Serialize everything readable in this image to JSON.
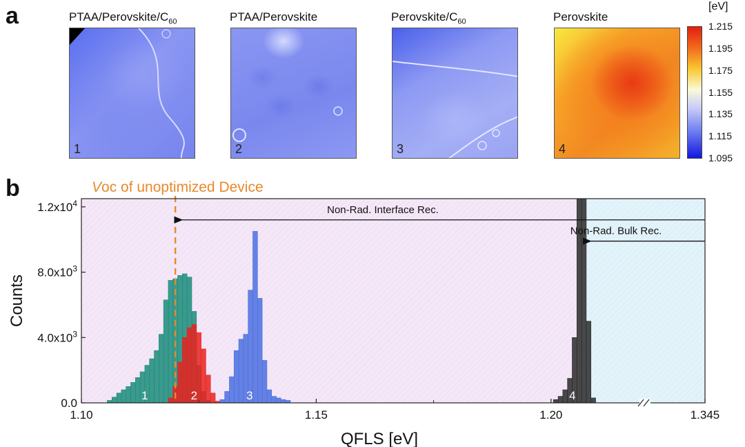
{
  "panel_a": {
    "letter": "a",
    "maps": [
      {
        "title_main": "PTAA/Perovskite/C",
        "title_sub": "60",
        "number": "1"
      },
      {
        "title_main": "PTAA/Perovskite",
        "title_sub": "",
        "number": "2"
      },
      {
        "title_main": "Perovskite/C",
        "title_sub": "60",
        "number": "3"
      },
      {
        "title_main": "Perovskite",
        "title_sub": "",
        "number": "4"
      }
    ],
    "colorbar": {
      "unit": "[eV]",
      "ticks": [
        "1.215",
        "1.195",
        "1.175",
        "1.155",
        "1.135",
        "1.115",
        "1.095"
      ]
    }
  },
  "panel_b": {
    "letter": "b",
    "voc_label_italic": "V",
    "voc_label_rest": "oc of unoptimized Device"
  },
  "chart_data": {
    "type": "bar",
    "xlabel": "QFLS [eV]",
    "ylabel": "Counts",
    "xlim": [
      1.1,
      1.345
    ],
    "axis_break_after": 1.22,
    "ylim": [
      0,
      12500
    ],
    "x_ticks": [
      "1.10",
      "1.15",
      "1.20",
      "1.345"
    ],
    "y_ticks": [
      {
        "value": 0,
        "label": "0.0"
      },
      {
        "value": 4000,
        "label": "4.0x10",
        "exp": "3"
      },
      {
        "value": 8000,
        "label": "8.0x10",
        "exp": "3"
      },
      {
        "value": 12000,
        "label": "1.2x10",
        "exp": "4"
      }
    ],
    "voc_line_x": 1.12,
    "shaded_regions": [
      {
        "name": "Non-Rad. Interface Rec.",
        "x_start": 1.1,
        "x_end": 1.207,
        "color": "#f4e7f7"
      },
      {
        "name": "Non-Rad. Bulk Rec.",
        "x_start": 1.207,
        "x_end": 1.345,
        "color": "#e3f3fa"
      }
    ],
    "arrows": [
      {
        "label": "Non-Rad. Interface Rec.",
        "from_x": 1.345,
        "to_x": 1.12,
        "y": 11200
      },
      {
        "label": "Non-Rad. Bulk Rec.",
        "from_x": 1.345,
        "to_x": 1.207,
        "y": 9900
      }
    ],
    "series": [
      {
        "name": "1",
        "label": "1",
        "color": "#1a8c7a",
        "bin_width": 0.001,
        "x": [
          1.106,
          1.107,
          1.108,
          1.109,
          1.11,
          1.111,
          1.112,
          1.113,
          1.114,
          1.115,
          1.116,
          1.117,
          1.118,
          1.119,
          1.12,
          1.121,
          1.122,
          1.123,
          1.124,
          1.125,
          1.126,
          1.127
        ],
        "values": [
          150,
          350,
          600,
          800,
          1000,
          1250,
          1550,
          1900,
          2300,
          2700,
          3200,
          4200,
          6300,
          7500,
          7600,
          7800,
          7900,
          7700,
          5600,
          2300,
          700,
          150
        ]
      },
      {
        "name": "2",
        "label": "2",
        "color": "#e8221e",
        "bin_width": 0.001,
        "x": [
          1.119,
          1.12,
          1.121,
          1.122,
          1.123,
          1.124,
          1.125,
          1.126,
          1.127,
          1.128,
          1.129
        ],
        "values": [
          300,
          1000,
          2500,
          4000,
          4600,
          4800,
          4300,
          3300,
          1700,
          600,
          100
        ]
      },
      {
        "name": "3",
        "label": "3",
        "color": "#4a6ee0",
        "bin_width": 0.001,
        "x": [
          1.13,
          1.131,
          1.132,
          1.133,
          1.134,
          1.135,
          1.136,
          1.137,
          1.138,
          1.139,
          1.14,
          1.141,
          1.142,
          1.143,
          1.144
        ],
        "values": [
          200,
          700,
          1600,
          3200,
          3900,
          4200,
          6900,
          10500,
          6400,
          2600,
          800,
          400,
          300,
          200,
          150
        ]
      },
      {
        "name": "4",
        "label": "4",
        "color": "#2a2a2a",
        "bin_width": 0.001,
        "x": [
          1.201,
          1.202,
          1.203,
          1.204,
          1.205,
          1.206,
          1.207,
          1.208,
          1.209
        ],
        "values": [
          200,
          400,
          800,
          1500,
          4000,
          12500,
          12500,
          5000,
          300
        ]
      }
    ]
  }
}
